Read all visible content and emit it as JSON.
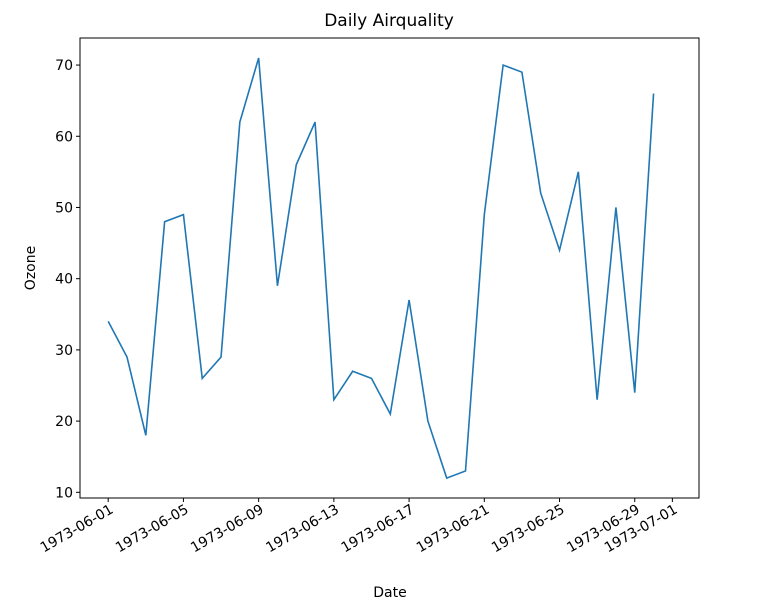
{
  "chart_data": {
    "type": "line",
    "title": "Daily Airquality",
    "x_label": "Date",
    "y_label": "Ozone",
    "x": [
      "1973-06-01",
      "1973-06-02",
      "1973-06-03",
      "1973-06-04",
      "1973-06-05",
      "1973-06-06",
      "1973-06-07",
      "1973-06-08",
      "1973-06-09",
      "1973-06-10",
      "1973-06-11",
      "1973-06-12",
      "1973-06-13",
      "1973-06-14",
      "1973-06-15",
      "1973-06-16",
      "1973-06-17",
      "1973-06-18",
      "1973-06-19",
      "1973-06-20",
      "1973-06-21",
      "1973-06-22",
      "1973-06-23",
      "1973-06-24",
      "1973-06-25",
      "1973-06-26",
      "1973-06-27",
      "1973-06-28",
      "1973-06-29",
      "1973-06-30"
    ],
    "values": [
      34,
      29,
      18,
      48,
      49,
      26,
      29,
      62,
      71,
      39,
      56,
      62,
      23,
      27,
      26,
      21,
      37,
      20,
      12,
      13,
      49,
      70,
      69,
      52,
      44,
      55,
      23,
      50,
      24,
      66
    ],
    "color": "#1f77b4",
    "xlim": [
      "1973-05-30T12:00",
      "1973-07-02T10:00"
    ],
    "xticks": [
      "1973-06-01",
      "1973-06-05",
      "1973-06-09",
      "1973-06-13",
      "1973-06-17",
      "1973-06-21",
      "1973-06-25",
      "1973-06-29",
      "1973-07-01"
    ],
    "ylim": [
      9.2,
      73.8
    ],
    "yticks": [
      10,
      20,
      30,
      40,
      50,
      60,
      70
    ],
    "grid": false
  }
}
